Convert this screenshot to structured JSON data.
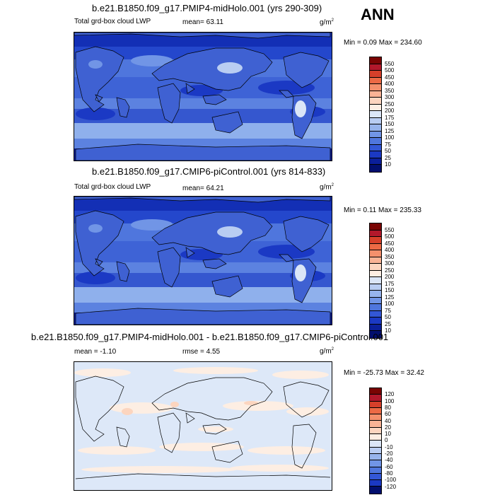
{
  "season": "ANN",
  "units_base": "g/m",
  "units_exp": "2",
  "panels": [
    {
      "title": "b.e21.B1850.f09_g17.PMIP4-midHolo.001 (yrs 290-309)",
      "variable": "Total grd-box cloud LWP",
      "mean_label": "mean=",
      "mean_value": "63.11",
      "minmax": "Min =   0.09 Max = 234.60",
      "colorbar_labels": [
        "550",
        "500",
        "450",
        "400",
        "350",
        "300",
        "250",
        "200",
        "175",
        "150",
        "125",
        "100",
        "75",
        "50",
        "25",
        "10"
      ],
      "colorbar_colors": [
        "#7a0403",
        "#b2182b",
        "#d6402a",
        "#ec6a45",
        "#f4906c",
        "#f9b395",
        "#fcd5bf",
        "#fdeee3",
        "#dbe6f7",
        "#b9cdf2",
        "#97b4ec",
        "#7195e6",
        "#4f76dd",
        "#3357d6",
        "#1b39c4",
        "#0b1f9a",
        "#020f6e"
      ]
    },
    {
      "title": "b.e21.B1850.f09_g17.CMIP6-piControl.001 (yrs 814-833)",
      "variable": "Total grd-box cloud LWP",
      "mean_label": "mean=",
      "mean_value": "64.21",
      "minmax": "Min =   0.11 Max = 235.33",
      "colorbar_labels": [
        "550",
        "500",
        "450",
        "400",
        "350",
        "300",
        "250",
        "200",
        "175",
        "150",
        "125",
        "100",
        "75",
        "50",
        "25",
        "10"
      ],
      "colorbar_colors": [
        "#7a0403",
        "#b2182b",
        "#d6402a",
        "#ec6a45",
        "#f4906c",
        "#f9b395",
        "#fcd5bf",
        "#fdeee3",
        "#dbe6f7",
        "#b9cdf2",
        "#97b4ec",
        "#7195e6",
        "#4f76dd",
        "#3357d6",
        "#1b39c4",
        "#0b1f9a",
        "#020f6e"
      ]
    },
    {
      "title": "b.e21.B1850.f09_g17.PMIP4-midHolo.001 - b.e21.B1850.f09_g17.CMIP6-piControl.001",
      "mean_label": "mean =",
      "mean_value": "-1.10",
      "rmse_label": "rmse =",
      "rmse_value": "4.55",
      "minmax": "Min = -25.73 Max =  32.42",
      "colorbar_labels": [
        "120",
        "100",
        "80",
        "60",
        "40",
        "20",
        "10",
        "0",
        "-10",
        "-20",
        "-40",
        "-60",
        "-80",
        "-100",
        "-120"
      ],
      "colorbar_colors": [
        "#7a0403",
        "#b2182b",
        "#d6402a",
        "#ec6a45",
        "#f4906c",
        "#f9b395",
        "#fcd5bf",
        "#fdeee3",
        "#dbe6f7",
        "#b9cdf2",
        "#97b4ec",
        "#7195e6",
        "#4f76dd",
        "#3357d6",
        "#1b39c4",
        "#020f6e"
      ]
    }
  ]
}
